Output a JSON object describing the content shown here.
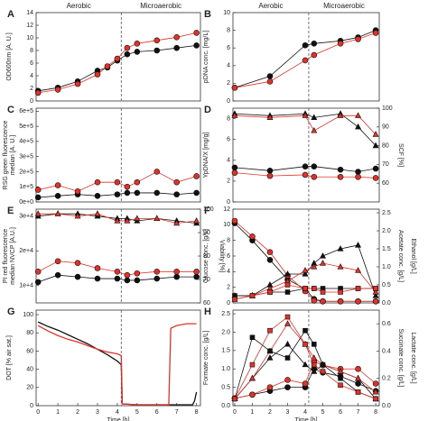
{
  "chart_data": [
    {
      "type": "line",
      "label": "A",
      "phase_labels": [
        "Aerobic",
        "Microaerobic"
      ],
      "phase_boundary": 4.2,
      "ylabel": "OD600nm [A. U.]",
      "xlim": [
        -0.1,
        8.2
      ],
      "ylim": [
        0,
        14
      ],
      "yticks": [
        0,
        2,
        4,
        6,
        8,
        10,
        12,
        14
      ],
      "series": [
        {
          "color": "#111111",
          "marker": "circle",
          "x": [
            0,
            1,
            2,
            3,
            3.5,
            4,
            4.5,
            5,
            6,
            7,
            8
          ],
          "values": [
            1.6,
            2.1,
            3.1,
            4.8,
            5.3,
            6.4,
            7.4,
            7.8,
            8.0,
            8.4,
            8.8
          ]
        },
        {
          "color": "#e0322a",
          "marker": "circle",
          "x": [
            0,
            1,
            2,
            3,
            3.5,
            4,
            4.5,
            5,
            6,
            7,
            8
          ],
          "values": [
            1.3,
            1.8,
            2.7,
            4.2,
            5.5,
            6.7,
            8.4,
            9.1,
            9.6,
            10.1,
            10.8
          ]
        }
      ]
    },
    {
      "type": "line",
      "label": "B",
      "phase_labels": [
        "Aerobic",
        "Microaerobic"
      ],
      "phase_boundary": 4.2,
      "ylabel": "pDNA conc. [mg/L]",
      "xlim": [
        -0.1,
        8.2
      ],
      "ylim": [
        0,
        10
      ],
      "yticks": [
        0,
        2,
        4,
        6,
        8,
        10
      ],
      "series": [
        {
          "color": "#111111",
          "marker": "circle",
          "x": [
            0,
            2,
            4,
            4.5,
            6,
            7,
            8
          ],
          "values": [
            1.5,
            2.8,
            6.3,
            6.5,
            6.8,
            7.2,
            8.0
          ]
        },
        {
          "color": "#e0322a",
          "marker": "circle",
          "x": [
            0,
            2,
            4,
            4.5,
            6,
            7,
            8
          ],
          "values": [
            1.5,
            2.2,
            4.6,
            5.2,
            6.5,
            7.0,
            7.7
          ]
        }
      ]
    },
    {
      "type": "line",
      "label": "C",
      "phase_boundary": 4.2,
      "ylabel": [
        "RSG green fluorescence",
        "median [A. U.]"
      ],
      "xlim": [
        -0.1,
        8.2
      ],
      "ylim": [
        0,
        620000
      ],
      "yticks": [
        {
          "value": 0,
          "label": "0e+0"
        },
        {
          "value": 100000,
          "label": "1e+5"
        },
        {
          "value": 200000,
          "label": "2e+5"
        },
        {
          "value": 300000,
          "label": "3e+5"
        },
        {
          "value": 400000,
          "label": "4e+5"
        },
        {
          "value": 500000,
          "label": "5e+5"
        },
        {
          "value": 600000,
          "label": "6e+5"
        }
      ],
      "series": [
        {
          "color": "#111111",
          "marker": "circle",
          "x": [
            0,
            1,
            2,
            3,
            4,
            4.5,
            5,
            6,
            7,
            8
          ],
          "values": [
            30000,
            40000,
            50000,
            40000,
            50000,
            60000,
            60000,
            60000,
            50000,
            60000
          ]
        },
        {
          "color": "#e0322a",
          "marker": "circle",
          "x": [
            0,
            1,
            2,
            3,
            4,
            4.5,
            5,
            6,
            7,
            8
          ],
          "values": [
            80000,
            110000,
            70000,
            130000,
            130000,
            100000,
            130000,
            200000,
            130000,
            170000
          ]
        }
      ]
    },
    {
      "type": "line",
      "label": "D",
      "phase_boundary": 4.2,
      "ylabel": "YpDNA/X [mg/g]",
      "y2label": "SCF [%]",
      "xlim": [
        -0.1,
        8.2
      ],
      "ylim": [
        0,
        9
      ],
      "yticks": [
        0,
        2,
        4,
        6,
        8
      ],
      "y2lim": [
        50,
        100
      ],
      "y2ticks": [
        60,
        70,
        80,
        90,
        100
      ],
      "series": [
        {
          "color": "#111111",
          "marker": "circle",
          "x": [
            0,
            2,
            4,
            4.5,
            6,
            7,
            8
          ],
          "values": [
            3.3,
            3.0,
            3.4,
            3.4,
            3.1,
            2.9,
            3.2
          ]
        },
        {
          "color": "#e0322a",
          "marker": "circle",
          "x": [
            0,
            2,
            4,
            4.5,
            6,
            7,
            8
          ],
          "values": [
            2.8,
            2.5,
            2.6,
            2.4,
            2.4,
            2.4,
            2.3
          ]
        },
        {
          "color": "#111111",
          "marker": "triangle",
          "axis": "y2",
          "x": [
            0,
            2,
            4,
            4.5,
            6,
            7,
            8
          ],
          "values": [
            97,
            96,
            97,
            95,
            97,
            90,
            80
          ]
        },
        {
          "color": "#e0322a",
          "marker": "triangle",
          "axis": "y2",
          "x": [
            0,
            2,
            4,
            4.5,
            6,
            7,
            8
          ],
          "values": [
            96,
            95,
            96,
            88,
            96,
            96,
            86
          ]
        }
      ]
    },
    {
      "type": "line",
      "label": "E",
      "phase_boundary": 4.2,
      "ylabel": [
        "PI red fluorescence",
        "median NVCP [A.U.]"
      ],
      "y2label": "Viability [%]",
      "xlim": [
        -0.1,
        8.2
      ],
      "ylim": [
        5000,
        32000
      ],
      "yticks": [
        {
          "value": 10000,
          "label": "1e+4"
        },
        {
          "value": 20000,
          "label": "2e+4"
        },
        {
          "value": 30000,
          "label": "3e+4"
        }
      ],
      "y2lim": [
        60,
        100
      ],
      "y2ticks": [
        60,
        70,
        80,
        90,
        100
      ],
      "series": [
        {
          "color": "#111111",
          "marker": "circle",
          "x": [
            0,
            1,
            2,
            3,
            4,
            4.5,
            5,
            6,
            7,
            8
          ],
          "values": [
            11000,
            13000,
            12500,
            12000,
            12000,
            11500,
            11500,
            12000,
            12500,
            12500
          ]
        },
        {
          "color": "#e0322a",
          "marker": "circle",
          "x": [
            0,
            1,
            2,
            3,
            4,
            4.5,
            5,
            6,
            7,
            8
          ],
          "values": [
            14000,
            17000,
            16500,
            15000,
            14000,
            13000,
            13500,
            14000,
            14000,
            14000
          ]
        },
        {
          "color": "#111111",
          "marker": "triangle",
          "axis": "y2",
          "x": [
            0,
            1,
            2,
            3,
            4,
            4.5,
            5,
            6,
            7,
            8
          ],
          "values": [
            97,
            98,
            98,
            97,
            96,
            96,
            95,
            96,
            95,
            94
          ]
        },
        {
          "color": "#e0322a",
          "marker": "triangle",
          "axis": "y2",
          "x": [
            0,
            1,
            2,
            3,
            4,
            4.5,
            5,
            6,
            7,
            8
          ],
          "values": [
            98,
            98,
            97,
            98,
            95,
            95,
            96,
            96,
            94,
            95
          ]
        }
      ]
    },
    {
      "type": "line",
      "label": "F",
      "phase_boundary": 4.2,
      "ylabel": "Glucose conc. [g/L]",
      "y2label": [
        "Acetate conc. [g/L]",
        "Ethanol [g/L]"
      ],
      "xlim": [
        -0.1,
        8.2
      ],
      "ylim": [
        0,
        12
      ],
      "yticks": [
        0,
        2,
        4,
        6,
        8,
        10,
        12
      ],
      "y2lim": [
        0,
        2.6
      ],
      "y2ticks": [
        {
          "value": 0,
          "label": "0.0"
        },
        0.5,
        {
          "value": 1,
          "label": "1.0"
        },
        1.5,
        {
          "value": 2,
          "label": "2.0"
        },
        2.5
      ],
      "series": [
        {
          "color": "#111111",
          "marker": "circle",
          "x": [
            0,
            1,
            2,
            3,
            4,
            4.5,
            5,
            6,
            7,
            8
          ],
          "values": [
            10.2,
            8.0,
            5.5,
            3.0,
            1.8,
            0.5,
            0.2,
            0.2,
            0.2,
            0.2
          ]
        },
        {
          "color": "#e0322a",
          "marker": "circle",
          "x": [
            0,
            1,
            2,
            3,
            4,
            4.5,
            5,
            6,
            7,
            8
          ],
          "values": [
            10.5,
            8.5,
            6.5,
            3.5,
            1.5,
            0.3,
            0.2,
            0.2,
            0.2,
            0.2
          ]
        },
        {
          "color": "#111111",
          "marker": "triangle",
          "axis": "y2",
          "x": [
            0,
            1,
            2,
            3,
            4,
            4.5,
            5,
            6,
            7,
            8
          ],
          "values": [
            0.2,
            0.2,
            0.5,
            0.8,
            0.8,
            1.1,
            1.3,
            1.5,
            1.6,
            0.2
          ]
        },
        {
          "color": "#e0322a",
          "marker": "triangle",
          "axis": "y2",
          "x": [
            0,
            1,
            2,
            3,
            4,
            4.5,
            5,
            6,
            7,
            8
          ],
          "values": [
            0.1,
            0.2,
            0.4,
            0.6,
            0.9,
            1.0,
            1.1,
            1.0,
            0.9,
            0.3
          ]
        },
        {
          "color": "#111111",
          "marker": "square",
          "axis": "y2",
          "x": [
            0,
            1,
            2,
            3,
            4,
            4.5,
            5,
            6,
            7,
            8
          ],
          "values": [
            0.2,
            0.2,
            0.3,
            0.3,
            0.4,
            0.4,
            0.4,
            0.4,
            0.4,
            0.4
          ]
        },
        {
          "color": "#e0322a",
          "marker": "square",
          "axis": "y2",
          "x": [
            0,
            1,
            2,
            3,
            4,
            4.5,
            5,
            6,
            7,
            8
          ],
          "values": [
            0.1,
            0.2,
            0.3,
            0.5,
            0.4,
            0.4,
            0.3,
            0.3,
            0.4,
            0.4
          ]
        }
      ]
    },
    {
      "type": "line",
      "label": "G",
      "phase_boundary": 4.2,
      "ylabel": "DOT [% air sat.]",
      "xlabel": "Time [h]",
      "xlim": [
        -0.1,
        8.2
      ],
      "ylim": [
        0,
        105
      ],
      "yticks": [
        0,
        20,
        40,
        60,
        80,
        100
      ],
      "xticks": [
        0,
        1,
        2,
        3,
        4,
        5,
        6,
        7,
        8
      ],
      "series": [
        {
          "color": "#111111",
          "x": [
            0,
            0.5,
            1,
            1.5,
            2,
            2.5,
            3,
            3.5,
            4,
            4.2,
            4.25,
            5,
            6,
            7,
            7.8,
            7.9,
            8
          ],
          "values": [
            92,
            87,
            83,
            78,
            73,
            68,
            62,
            56,
            49,
            45,
            2,
            1,
            1,
            1,
            1,
            5,
            15
          ]
        },
        {
          "color": "#e0322a",
          "x": [
            0,
            0.5,
            1,
            1.5,
            2,
            2.5,
            3,
            3.5,
            4,
            4.2,
            4.25,
            5,
            6,
            6.5,
            6.6,
            6.7,
            7,
            7.5,
            8
          ],
          "values": [
            88,
            82,
            77,
            73,
            70,
            66,
            62,
            59,
            57,
            55,
            2,
            1,
            1,
            1,
            1,
            85,
            88,
            90,
            90
          ]
        }
      ]
    },
    {
      "type": "line",
      "label": "H",
      "phase_boundary": 4.2,
      "ylabel": "Formate conc. [g/L]",
      "y2label": [
        "Succinate conc. [g/L]",
        "Lactate conc. [g/L]"
      ],
      "xlabel": "Time [h]",
      "xlim": [
        -0.1,
        8.2
      ],
      "ylim": [
        0,
        2.6
      ],
      "yticks": [
        {
          "value": 0,
          "label": "0.0"
        },
        0.5,
        {
          "value": 1,
          "label": "1.0"
        },
        1.5,
        {
          "value": 2,
          "label": "2.0"
        },
        2.5
      ],
      "y2lim": [
        0,
        0.7
      ],
      "y2ticks": [
        {
          "value": 0,
          "label": "0.0"
        },
        0.2,
        0.4,
        0.6
      ],
      "xticks": [
        0,
        1,
        2,
        3,
        4,
        5,
        6,
        7,
        8
      ],
      "series": [
        {
          "color": "#111111",
          "marker": "circle",
          "x": [
            0,
            1,
            2,
            3,
            4,
            4.5,
            5,
            6,
            7,
            8
          ],
          "values": [
            0.2,
            0.3,
            0.4,
            0.5,
            0.5,
            1.0,
            0.9,
            0.8,
            0.6,
            0.4
          ]
        },
        {
          "color": "#e0322a",
          "marker": "circle",
          "x": [
            0,
            1,
            2,
            3,
            4,
            4.5,
            5,
            6,
            7,
            8
          ],
          "values": [
            0.2,
            0.3,
            0.5,
            0.7,
            0.6,
            1.2,
            1.1,
            1.0,
            1.0,
            0.6
          ]
        },
        {
          "color": "#111111",
          "marker": "triangle",
          "axis": "y2",
          "x": [
            0,
            1,
            2,
            3,
            4,
            4.5,
            5,
            6,
            7,
            8
          ],
          "values": [
            0.05,
            0.2,
            0.35,
            0.45,
            0.3,
            0.25,
            0.3,
            0.25,
            0.2,
            0.05
          ]
        },
        {
          "color": "#e0322a",
          "marker": "triangle",
          "axis": "y2",
          "x": [
            0,
            1,
            2,
            3,
            4,
            4.5,
            5,
            6,
            7,
            8
          ],
          "values": [
            0.05,
            0.2,
            0.4,
            0.6,
            0.45,
            0.35,
            0.3,
            0.25,
            0.2,
            0.1
          ]
        },
        {
          "color": "#111111",
          "marker": "square",
          "axis": "y2",
          "x": [
            0,
            1,
            2,
            3,
            4,
            4.5,
            5,
            6,
            7,
            8
          ],
          "values": [
            0.05,
            0.5,
            0.4,
            0.35,
            0.55,
            0.45,
            0.3,
            0.2,
            0.1,
            0.05
          ]
        },
        {
          "color": "#e0322a",
          "marker": "square",
          "axis": "y2",
          "x": [
            0,
            1,
            2,
            3,
            4,
            4.5,
            5,
            6,
            7,
            8
          ],
          "values": [
            0.05,
            0.3,
            0.55,
            0.65,
            0.45,
            0.3,
            0.25,
            0.15,
            0.1,
            0.05
          ]
        }
      ]
    }
  ]
}
